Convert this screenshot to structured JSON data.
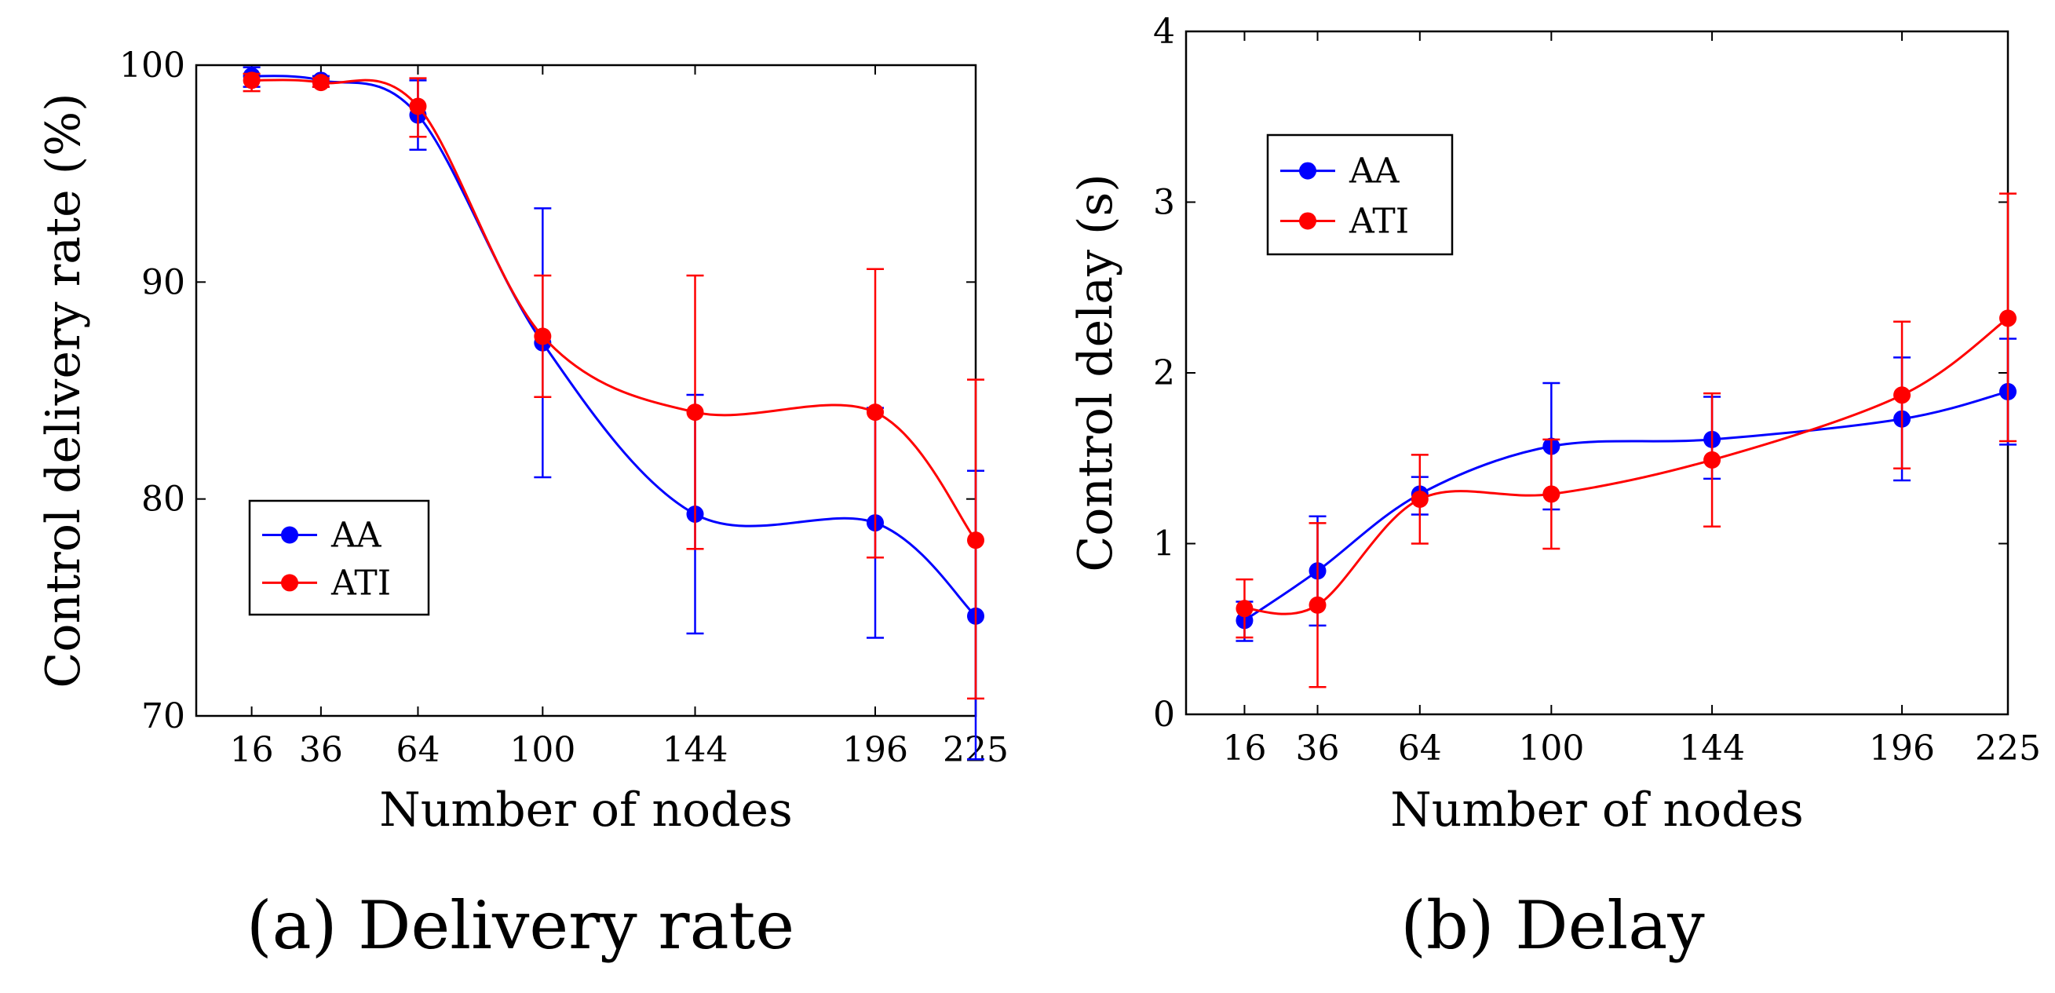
{
  "colors": {
    "AA": "#0000ff",
    "ATI": "#ff0000"
  },
  "chart_data": [
    {
      "type": "line",
      "caption": "(a) Delivery rate",
      "xlabel": "Number of nodes",
      "ylabel": "Control delivery rate (%)",
      "x": [
        16,
        36,
        64,
        100,
        144,
        196,
        225
      ],
      "xlim": [
        0,
        225
      ],
      "ylim": [
        70,
        100
      ],
      "yticks": [
        70,
        80,
        90,
        100
      ],
      "grid": false,
      "legend_position": "bottom-left",
      "series": [
        {
          "name": "AA",
          "color": "#0000ff",
          "values": [
            99.5,
            99.3,
            97.7,
            87.2,
            79.3,
            78.9,
            74.6
          ],
          "err_low": [
            99.0,
            99.0,
            96.1,
            81.0,
            73.8,
            73.6,
            68.0
          ],
          "err_high": [
            99.9,
            99.5,
            99.3,
            93.4,
            84.8,
            84.2,
            81.3
          ]
        },
        {
          "name": "ATI",
          "color": "#ff0000",
          "values": [
            99.3,
            99.2,
            98.1,
            87.5,
            84.0,
            84.0,
            78.1
          ],
          "err_low": [
            98.8,
            99.0,
            96.7,
            84.7,
            77.7,
            77.3,
            70.8
          ],
          "err_high": [
            99.6,
            99.4,
            99.4,
            90.3,
            90.3,
            90.6,
            85.5
          ]
        }
      ]
    },
    {
      "type": "line",
      "caption": "(b) Delay",
      "xlabel": "Number of nodes",
      "ylabel": "Control delay (s)",
      "x": [
        16,
        36,
        64,
        100,
        144,
        196,
        225
      ],
      "xlim": [
        0,
        225
      ],
      "ylim": [
        0,
        4
      ],
      "yticks": [
        0,
        1,
        2,
        3,
        4
      ],
      "grid": false,
      "legend_position": "top-left",
      "series": [
        {
          "name": "AA",
          "color": "#0000ff",
          "values": [
            0.55,
            0.84,
            1.29,
            1.57,
            1.61,
            1.73,
            1.89
          ],
          "err_low": [
            0.43,
            0.52,
            1.17,
            1.2,
            1.38,
            1.37,
            1.58
          ],
          "err_high": [
            0.66,
            1.16,
            1.39,
            1.94,
            1.86,
            2.09,
            2.2
          ]
        },
        {
          "name": "ATI",
          "color": "#ff0000",
          "values": [
            0.62,
            0.64,
            1.26,
            1.29,
            1.49,
            1.87,
            2.32
          ],
          "err_low": [
            0.45,
            0.16,
            1.0,
            0.97,
            1.1,
            1.44,
            1.6
          ],
          "err_high": [
            0.79,
            1.12,
            1.52,
            1.61,
            1.88,
            2.3,
            3.05
          ]
        }
      ]
    }
  ]
}
